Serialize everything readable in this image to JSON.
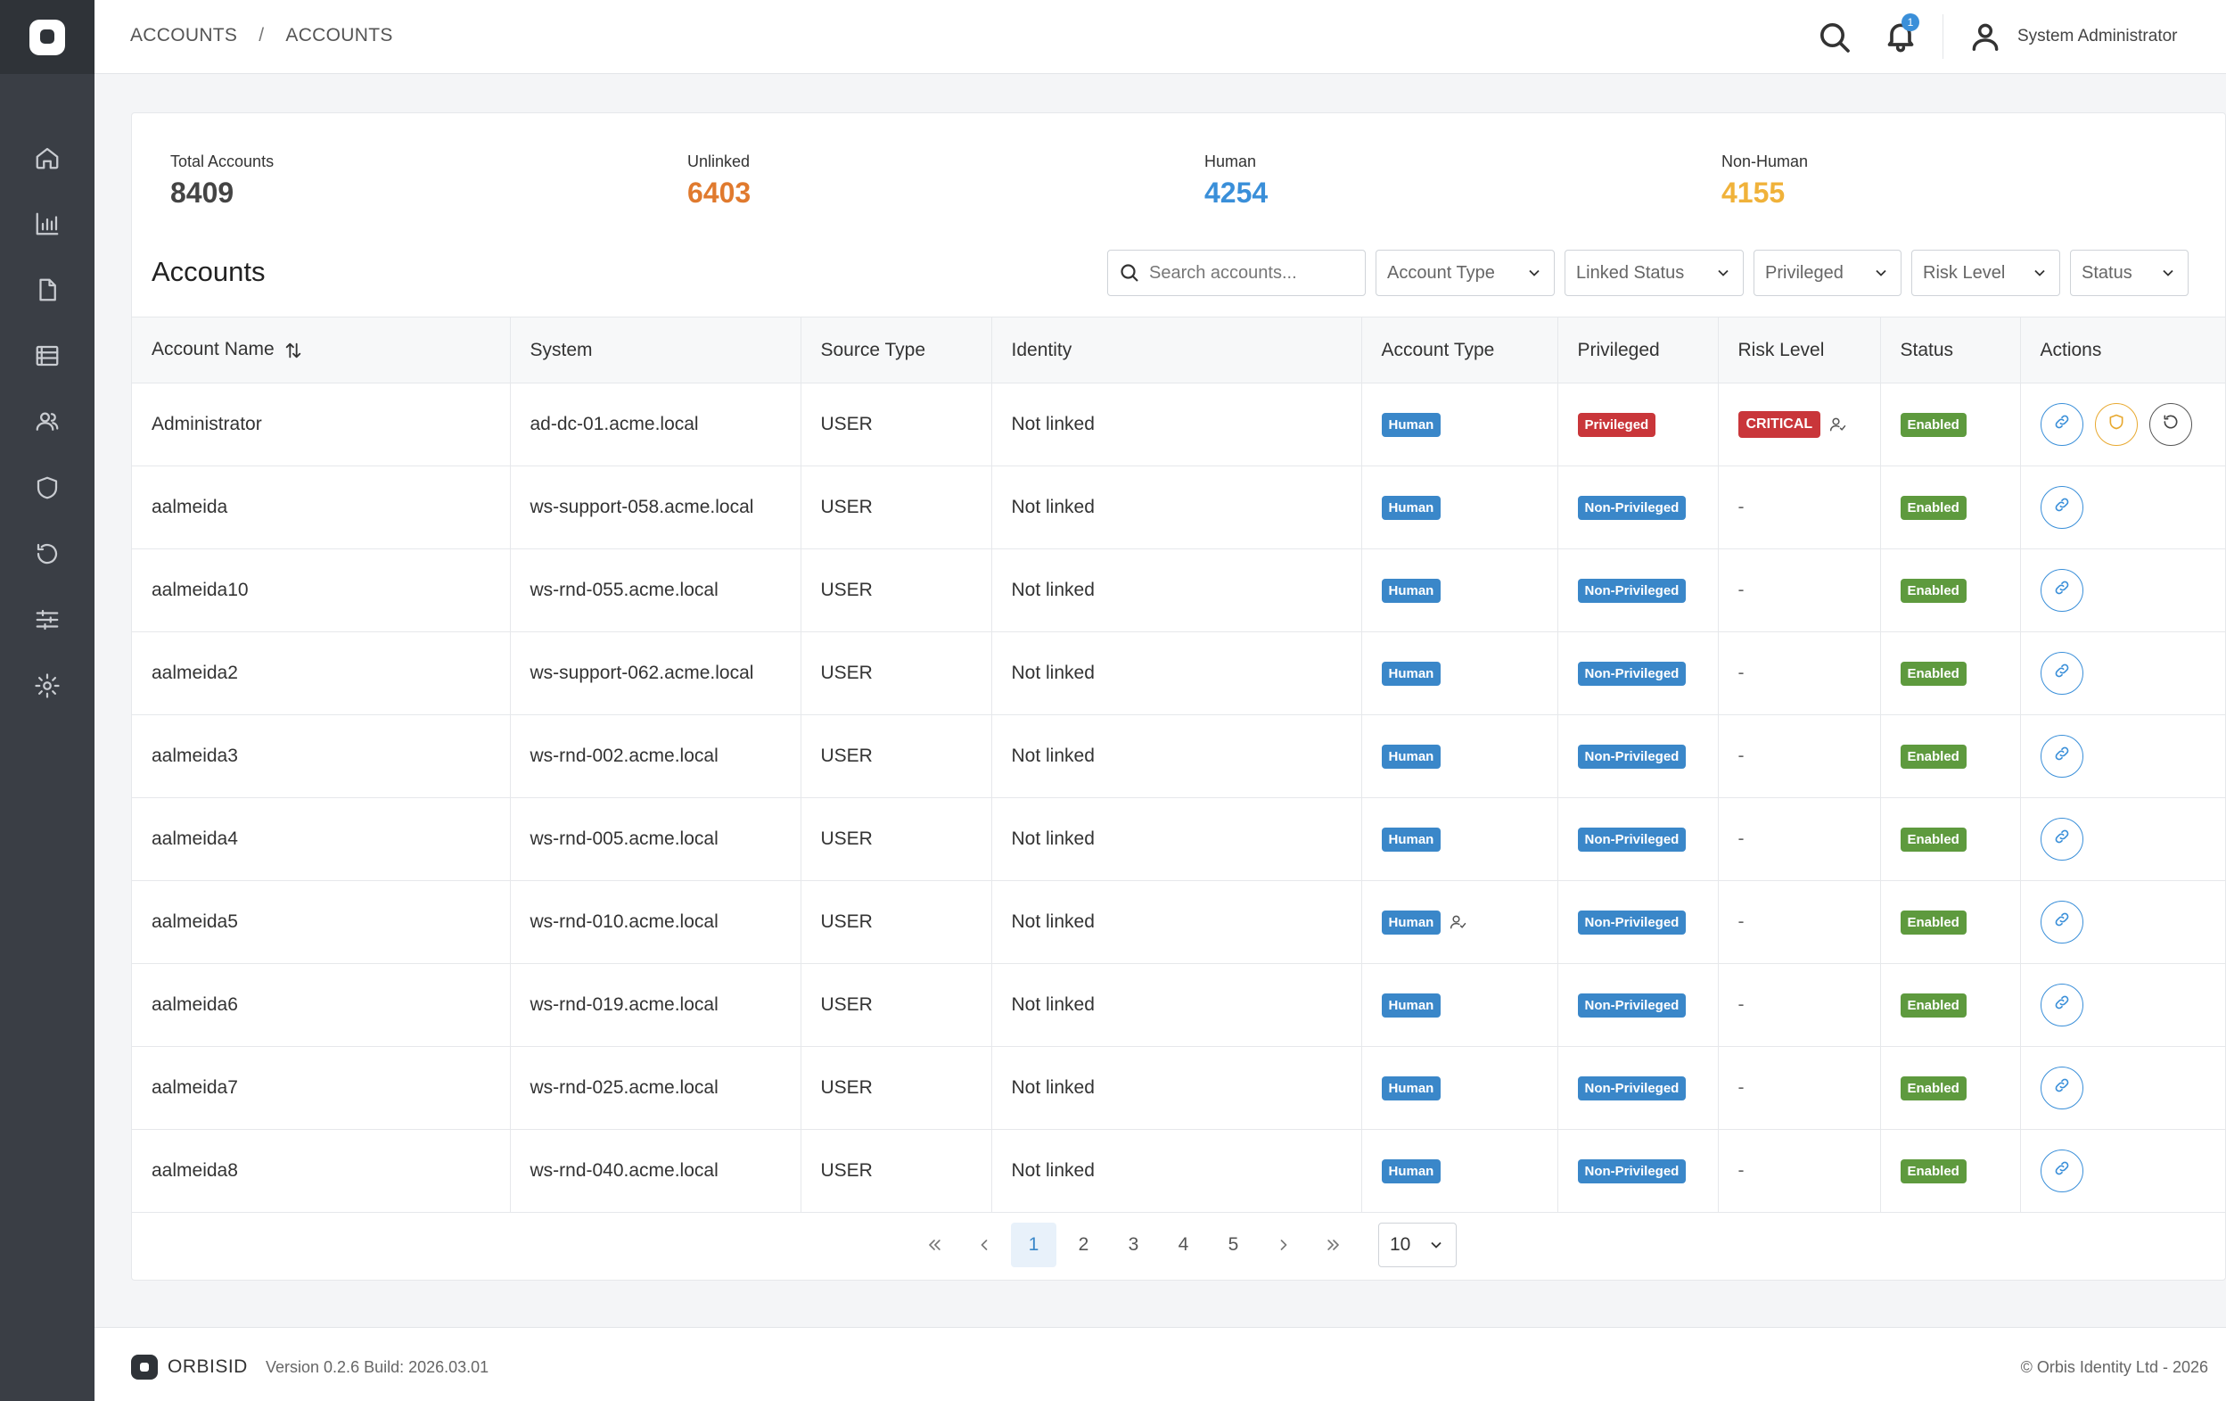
{
  "breadcrumb": [
    "ACCOUNTS",
    "ACCOUNTS"
  ],
  "breadcrumb_sep": "/",
  "header": {
    "notification_count": "1",
    "user_name": "System Administrator"
  },
  "stats": [
    {
      "label": "Total Accounts",
      "value": "8409",
      "color": "#444444"
    },
    {
      "label": "Unlinked",
      "value": "6403",
      "color": "#e07a2e"
    },
    {
      "label": "Human",
      "value": "4254",
      "color": "#3a8fd9"
    },
    {
      "label": "Non-Human",
      "value": "4155",
      "color": "#f0b23a"
    }
  ],
  "title": "Accounts",
  "search": {
    "placeholder": "Search accounts...",
    "value": ""
  },
  "filters": [
    "Account Type",
    "Linked Status",
    "Privileged",
    "Risk Level",
    "Status"
  ],
  "columns": [
    "Account Name",
    "System",
    "Source Type",
    "Identity",
    "Account Type",
    "Privileged",
    "Risk Level",
    "Status",
    "Actions"
  ],
  "rows": [
    {
      "name": "Administrator",
      "system": "ad-dc-01.acme.local",
      "source": "USER",
      "identity": "Not linked",
      "type": "Human",
      "privileged": "Privileged",
      "risk": "CRITICAL",
      "status": "Enabled"
    },
    {
      "name": "aalmeida",
      "system": "ws-support-058.acme.local",
      "source": "USER",
      "identity": "Not linked",
      "type": "Human",
      "privileged": "Non-Privileged",
      "risk": "-",
      "status": "Enabled"
    },
    {
      "name": "aalmeida10",
      "system": "ws-rnd-055.acme.local",
      "source": "USER",
      "identity": "Not linked",
      "type": "Human",
      "privileged": "Non-Privileged",
      "risk": "-",
      "status": "Enabled"
    },
    {
      "name": "aalmeida2",
      "system": "ws-support-062.acme.local",
      "source": "USER",
      "identity": "Not linked",
      "type": "Human",
      "privileged": "Non-Privileged",
      "risk": "-",
      "status": "Enabled"
    },
    {
      "name": "aalmeida3",
      "system": "ws-rnd-002.acme.local",
      "source": "USER",
      "identity": "Not linked",
      "type": "Human",
      "privileged": "Non-Privileged",
      "risk": "-",
      "status": "Enabled"
    },
    {
      "name": "aalmeida4",
      "system": "ws-rnd-005.acme.local",
      "source": "USER",
      "identity": "Not linked",
      "type": "Human",
      "privileged": "Non-Privileged",
      "risk": "-",
      "status": "Enabled"
    },
    {
      "name": "aalmeida5",
      "system": "ws-rnd-010.acme.local",
      "source": "USER",
      "identity": "Not linked",
      "type": "Human",
      "privileged": "Non-Privileged",
      "risk": "-",
      "status": "Enabled"
    },
    {
      "name": "aalmeida6",
      "system": "ws-rnd-019.acme.local",
      "source": "USER",
      "identity": "Not linked",
      "type": "Human",
      "privileged": "Non-Privileged",
      "risk": "-",
      "status": "Enabled"
    },
    {
      "name": "aalmeida7",
      "system": "ws-rnd-025.acme.local",
      "source": "USER",
      "identity": "Not linked",
      "type": "Human",
      "privileged": "Non-Privileged",
      "risk": "-",
      "status": "Enabled"
    },
    {
      "name": "aalmeida8",
      "system": "ws-rnd-040.acme.local",
      "source": "USER",
      "identity": "Not linked",
      "type": "Human",
      "privileged": "Non-Privileged",
      "risk": "-",
      "status": "Enabled"
    }
  ],
  "pagination": {
    "pages": [
      "1",
      "2",
      "3",
      "4",
      "5"
    ],
    "page_size": "10"
  },
  "footer": {
    "brand": "ORBISID",
    "version": "Version 0.2.6 Build: 2026.03.01",
    "copyright": "© Orbis Identity Ltd - 2026"
  }
}
